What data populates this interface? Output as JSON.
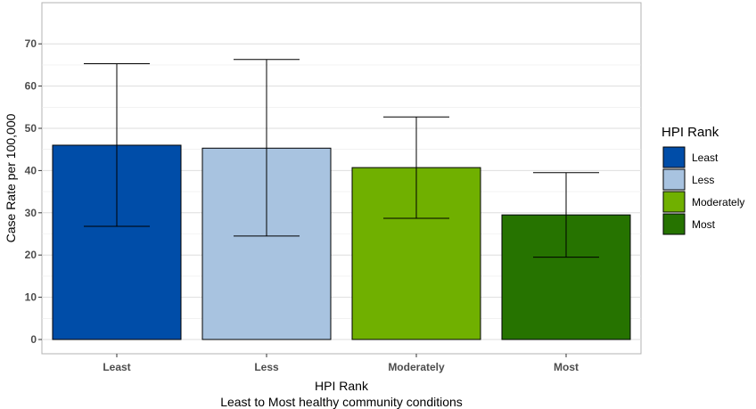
{
  "chart_data": {
    "type": "bar",
    "categories": [
      "Least",
      "Less",
      "Moderately",
      "Most"
    ],
    "values": [
      46,
      45.3,
      40.7,
      29.5
    ],
    "error_low": [
      26.8,
      24.5,
      28.7,
      19.5
    ],
    "error_high": [
      65.3,
      66.3,
      52.7,
      39.5
    ],
    "colors": [
      "#004da8",
      "#a8c3e0",
      "#70b000",
      "#267300"
    ],
    "title": "",
    "xlabel": "HPI Rank",
    "xlabel_sub": "Least to Most healthy community conditions",
    "ylabel": "Case Rate per 100,000",
    "ylim": [
      0,
      75
    ],
    "yticks": [
      0,
      10,
      20,
      30,
      40,
      50,
      60,
      70
    ],
    "grid": true,
    "legend": {
      "title": "HPI Rank",
      "placement": "right",
      "entries": [
        "Least",
        "Less",
        "Moderately",
        "Most"
      ]
    }
  }
}
